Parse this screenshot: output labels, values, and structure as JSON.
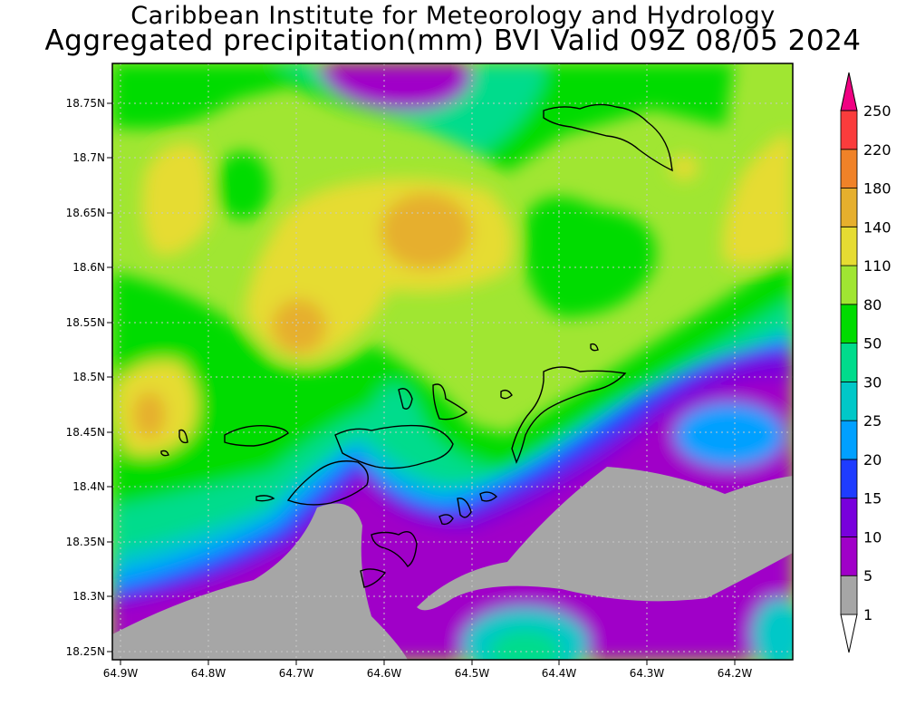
{
  "header": {
    "title": "Caribbean Institute for Meteorology and Hydrology",
    "subtitle": "Aggregated precipitation(mm) BVI Valid 09Z 08/05 2024"
  },
  "map": {
    "lat_ticks": [
      "18.75N",
      "18.7N",
      "18.65N",
      "18.6N",
      "18.55N",
      "18.5N",
      "18.45N",
      "18.4N",
      "18.35N",
      "18.3N",
      "18.25N"
    ],
    "lon_ticks": [
      "64.9W",
      "64.8W",
      "64.7W",
      "64.6W",
      "64.5W",
      "64.4W",
      "64.3W",
      "64.2W"
    ],
    "lat_range": [
      18.24,
      18.785
    ],
    "lon_range": [
      -64.907,
      -64.135
    ]
  },
  "colorbar": {
    "labels": [
      "1",
      "5",
      "10",
      "15",
      "20",
      "25",
      "30",
      "50",
      "80",
      "110",
      "140",
      "180",
      "220",
      "250"
    ],
    "colors": [
      "#ffffff",
      "#a6a6a6",
      "#a000c8",
      "#7800dc",
      "#1e3cff",
      "#00a0ff",
      "#00c8c8",
      "#00dc8c",
      "#00dc00",
      "#a0e632",
      "#e6dc32",
      "#e6af2d",
      "#f08228",
      "#fa3c3c",
      "#f00082"
    ]
  }
}
